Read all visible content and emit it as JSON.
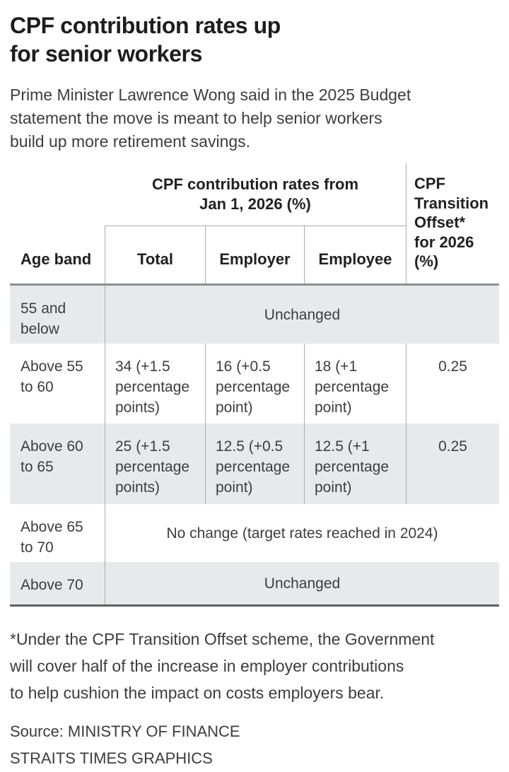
{
  "header": {
    "title": "CPF contribution rates up\nfor senior workers",
    "subtitle": "Prime Minister Lawrence Wong said in the 2025 Budget\nstatement the move is meant to help senior workers\nbuild up more retirement savings."
  },
  "table": {
    "col_headers": {
      "age_band": "Age band",
      "rates_group": "CPF contribution rates from\nJan 1, 2026 (%)",
      "total": "Total",
      "employer": "Employer",
      "employee": "Employee",
      "offset": "CPF\nTransition\nOffset*\nfor 2026\n(%)"
    },
    "rows": [
      {
        "age_band": "55 and\nbelow",
        "span": "Unchanged"
      },
      {
        "age_band": "Above 55\nto 60",
        "total": "34 (+1.5\npercentage\npoints)",
        "employer": "16 (+0.5\npercentage\npoint)",
        "employee": "18 (+1\npercentage\npoint)",
        "offset": "0.25"
      },
      {
        "age_band": "Above 60\nto 65",
        "total": "25 (+1.5\npercentage\npoints)",
        "employer": "12.5 (+0.5\npercentage\npoint)",
        "employee": "12.5 (+1\npercentage\npoint)",
        "offset": "0.25"
      },
      {
        "age_band": "Above 65\nto 70",
        "span": "No change (target rates reached in 2024)"
      },
      {
        "age_band": "Above 70",
        "span": "Unchanged"
      }
    ]
  },
  "footer": {
    "footnote": "*Under the CPF Transition Offset scheme, the Government\nwill cover half of the increase in employer contributions\nto help cushion the impact on costs employers bear.",
    "source": "Source: MINISTRY OF FINANCE",
    "credit": "STRAITS TIMES GRAPHICS"
  },
  "colors": {
    "row_shade": "#e7eaeb",
    "divider": "#a8acaf",
    "rule_mid": "#8b8f92",
    "rule_bottom": "#5d6163",
    "text_heading": "#1d1d1d",
    "text_body": "#3d3d3d"
  },
  "chart_data": {
    "type": "table",
    "title": "CPF contribution rates up for senior workers",
    "column_group": "CPF contribution rates from Jan 1, 2026 (%)",
    "columns": [
      "Age band",
      "Total",
      "Employer",
      "Employee",
      "CPF Transition Offset* for 2026 (%)"
    ],
    "rows": [
      {
        "age_band": "55 and below",
        "note": "Unchanged"
      },
      {
        "age_band": "Above 55 to 60",
        "total": "34 (+1.5 percentage points)",
        "employer": "16 (+0.5 percentage point)",
        "employee": "18 (+1 percentage point)",
        "transition_offset": 0.25
      },
      {
        "age_band": "Above 60 to 65",
        "total": "25 (+1.5 percentage points)",
        "employer": "12.5 (+0.5 percentage point)",
        "employee": "12.5 (+1 percentage point)",
        "transition_offset": 0.25
      },
      {
        "age_band": "Above 65 to 70",
        "note": "No change (target rates reached in 2024)"
      },
      {
        "age_band": "Above 70",
        "note": "Unchanged"
      }
    ]
  }
}
